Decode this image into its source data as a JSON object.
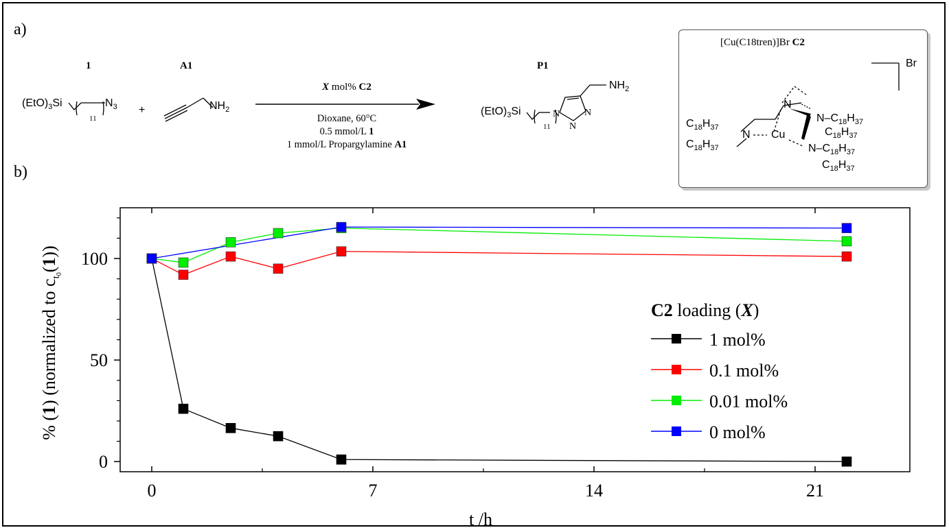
{
  "panel_a_label": "a)",
  "panel_b_label": "b)",
  "scheme": {
    "reactant1_id": "1",
    "reactant2_id": "A1",
    "product_id": "P1",
    "plus": "+",
    "reactant1_formula": "(EtO)3Si(CH2)11N3",
    "reactant2_formula": "NH2",
    "product_formula_left": "(EtO)3Si",
    "product_subscript": "11",
    "product_amine": "NH2",
    "arrow_label_var": "X",
    "arrow_label_rest": "mol%",
    "arrow_label_cat": "C2",
    "conditions": [
      "Dioxane, 60°C",
      "0.5 mmol/L",
      "1 mmol/L Propargylamine"
    ],
    "conditions_bold": [
      "",
      "",
      "1",
      "A1"
    ]
  },
  "catalyst": {
    "title": "[Cu(C18tren)]Br",
    "title_bold": "C2",
    "counterion": "Br",
    "metal": "Cu",
    "alkyl": "C18H37"
  },
  "chart_data": {
    "type": "line",
    "xlabel": "t /h",
    "ylabel": "% (1) (normalized to c_t0(1))",
    "xlim": [
      -1,
      24
    ],
    "ylim": [
      -5,
      125
    ],
    "xticks": [
      0,
      7,
      14,
      21
    ],
    "yticks": [
      0,
      50,
      100
    ],
    "legend_title": "C2 loading (X)",
    "legend_position": "right",
    "series": [
      {
        "name": "1 mol%",
        "color": "#000000",
        "x": [
          0,
          1,
          2.5,
          4,
          6,
          22
        ],
        "y": [
          100,
          26,
          16.5,
          12.5,
          1,
          0
        ]
      },
      {
        "name": "0.1 mol%",
        "color": "#ff0000",
        "x": [
          0,
          1,
          2.5,
          4,
          6,
          22
        ],
        "y": [
          100,
          92,
          101,
          95,
          103.5,
          101
        ]
      },
      {
        "name": "0.01 mol%",
        "color": "#00ee00",
        "x": [
          0,
          1,
          2.5,
          4,
          6,
          22
        ],
        "y": [
          100,
          98,
          108,
          112.5,
          115,
          108.5
        ]
      },
      {
        "name": "0 mol%",
        "color": "#0000ff",
        "x": [
          0,
          6,
          22
        ],
        "y": [
          100,
          115.5,
          115
        ]
      }
    ]
  }
}
